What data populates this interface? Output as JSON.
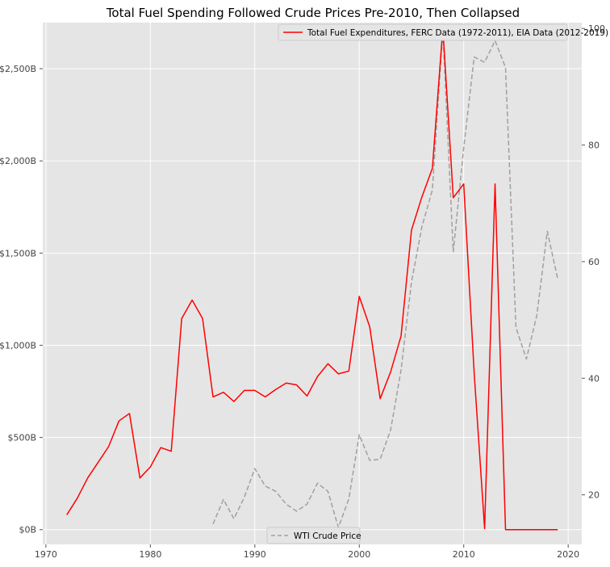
{
  "chart_data": {
    "type": "line",
    "title": "Total Fuel Spending Followed Crude Prices Pre-2010, Then Collapsed",
    "xlabel": "",
    "ylabel": "",
    "y2label": "",
    "xlim": [
      1969.7,
      2021.3
    ],
    "ylim": [
      -80000000000,
      2750000000000
    ],
    "y2lim": [
      11.5,
      101
    ],
    "x_ticks": [
      1970,
      1980,
      1990,
      2000,
      2010,
      2020
    ],
    "x_tick_labels": [
      "1970",
      "1980",
      "1990",
      "2000",
      "2010",
      "2020"
    ],
    "y_ticks": [
      0,
      500000000000,
      1000000000000,
      1500000000000,
      2000000000000,
      2500000000000
    ],
    "y_tick_labels": [
      "$0B",
      "$500B",
      "$1,000B",
      "$1,500B",
      "$2,000B",
      "$2,500B"
    ],
    "y2_ticks": [
      20,
      40,
      60,
      80,
      100
    ],
    "y2_tick_labels": [
      "20",
      "40",
      "60",
      "80",
      "100"
    ],
    "grid": true,
    "series": [
      {
        "name": "Total Fuel Expenditures, FERC Data (1972-2011), EIA Data (2012-2019)",
        "axis": "left",
        "color": "#ff0000",
        "style": "solid",
        "x": [
          1972,
          1973,
          1974,
          1975,
          1976,
          1977,
          1978,
          1979,
          1980,
          1981,
          1982,
          1983,
          1984,
          1985,
          1986,
          1987,
          1988,
          1989,
          1990,
          1991,
          1992,
          1993,
          1994,
          1995,
          1996,
          1997,
          1998,
          1999,
          2000,
          2001,
          2002,
          2003,
          2004,
          2005,
          2006,
          2007,
          2008,
          2009,
          2010,
          2011,
          2012,
          2013,
          2014,
          2015,
          2016,
          2017,
          2018,
          2019
        ],
        "values": [
          80000000000,
          170000000000,
          280000000000,
          365000000000,
          450000000000,
          590000000000,
          630000000000,
          280000000000,
          340000000000,
          445000000000,
          425000000000,
          1145000000000,
          1245000000000,
          1145000000000,
          720000000000,
          745000000000,
          695000000000,
          755000000000,
          755000000000,
          720000000000,
          760000000000,
          795000000000,
          785000000000,
          725000000000,
          830000000000,
          900000000000,
          845000000000,
          860000000000,
          1265000000000,
          1100000000000,
          710000000000,
          855000000000,
          1050000000000,
          1625000000000,
          1805000000000,
          1960000000000,
          2720000000000,
          1800000000000,
          1875000000000,
          850000000000,
          5000000000,
          1875000000000,
          0,
          0,
          0,
          0,
          0,
          0
        ]
      },
      {
        "name": "WTI Crude Price",
        "axis": "right",
        "color": "#a0a0a0",
        "style": "dashed",
        "x": [
          1986,
          1987,
          1988,
          1989,
          1990,
          1991,
          1992,
          1993,
          1994,
          1995,
          1996,
          1997,
          1998,
          1999,
          2000,
          2001,
          2002,
          2003,
          2004,
          2005,
          2006,
          2007,
          2008,
          2009,
          2010,
          2011,
          2012,
          2013,
          2014,
          2015,
          2016,
          2017,
          2018,
          2019
        ],
        "values": [
          15.0,
          19.2,
          15.9,
          19.6,
          24.5,
          21.5,
          20.6,
          18.4,
          17.2,
          18.4,
          22.0,
          20.6,
          14.4,
          19.3,
          30.3,
          25.9,
          26.1,
          31.1,
          41.4,
          56.5,
          66.0,
          72.3,
          99.6,
          61.7,
          79.5,
          95.1,
          94.2,
          97.9,
          93.3,
          48.7,
          43.3,
          50.8,
          65.2,
          57.0
        ]
      }
    ]
  }
}
